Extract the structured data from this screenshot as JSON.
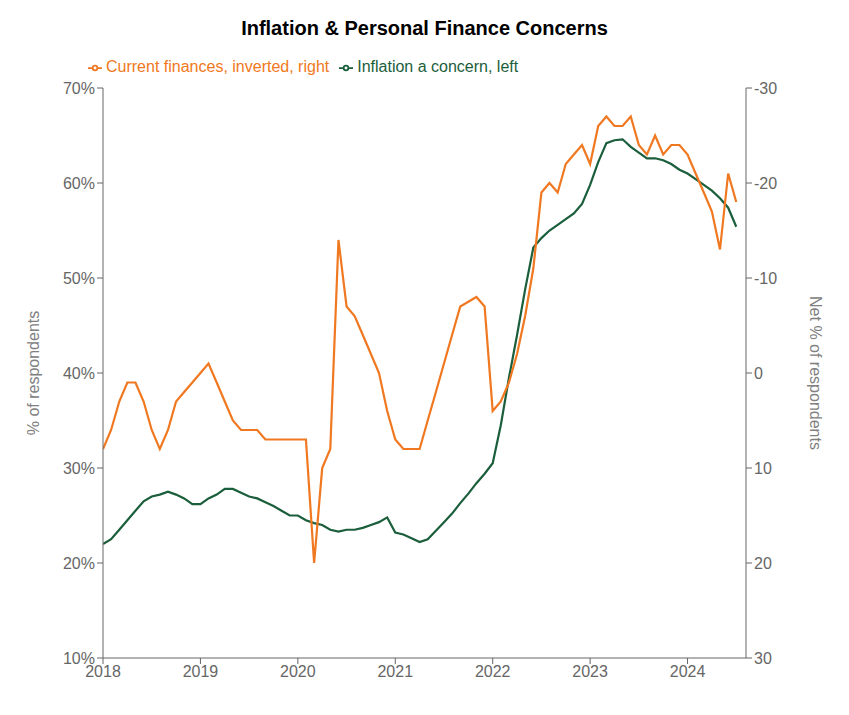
{
  "chart_data": {
    "type": "line",
    "title": "Inflation & Personal Finance Concerns",
    "y_label": "% of respondents",
    "y2_label": "Net % of respondents",
    "x": [
      2018.0,
      2018.083,
      2018.167,
      2018.25,
      2018.333,
      2018.417,
      2018.5,
      2018.583,
      2018.667,
      2018.75,
      2018.833,
      2018.917,
      2019.0,
      2019.083,
      2019.167,
      2019.25,
      2019.333,
      2019.417,
      2019.5,
      2019.583,
      2019.667,
      2019.75,
      2019.833,
      2019.917,
      2020.0,
      2020.083,
      2020.167,
      2020.25,
      2020.333,
      2020.417,
      2020.5,
      2020.583,
      2020.667,
      2020.75,
      2020.833,
      2020.917,
      2021.0,
      2021.083,
      2021.167,
      2021.25,
      2021.333,
      2021.417,
      2021.5,
      2021.583,
      2021.667,
      2021.75,
      2021.833,
      2021.917,
      2022.0,
      2022.083,
      2022.167,
      2022.25,
      2022.333,
      2022.417,
      2022.5,
      2022.583,
      2022.667,
      2022.75,
      2022.833,
      2022.917,
      2023.0,
      2023.083,
      2023.167,
      2023.25,
      2023.333,
      2023.417,
      2023.5,
      2023.583,
      2023.667,
      2023.75,
      2023.833,
      2023.917,
      2024.0,
      2024.083,
      2024.167,
      2024.25,
      2024.333,
      2024.417,
      2024.5
    ],
    "series": [
      {
        "name": "Inflation a concern, left",
        "color": "#1b5e3b",
        "axis": "y",
        "values": [
          0.22,
          0.225,
          0.235,
          0.245,
          0.255,
          0.265,
          0.27,
          0.272,
          0.275,
          0.272,
          0.268,
          0.262,
          0.262,
          0.268,
          0.272,
          0.278,
          0.278,
          0.274,
          0.27,
          0.268,
          0.264,
          0.26,
          0.255,
          0.25,
          0.25,
          0.245,
          0.242,
          0.24,
          0.235,
          0.233,
          0.235,
          0.235,
          0.237,
          0.24,
          0.243,
          0.248,
          0.232,
          0.23,
          0.226,
          0.222,
          0.225,
          0.234,
          0.243,
          0.252,
          0.263,
          0.273,
          0.284,
          0.294,
          0.305,
          0.345,
          0.395,
          0.44,
          0.488,
          0.532,
          0.542,
          0.55,
          0.556,
          0.562,
          0.568,
          0.578,
          0.598,
          0.622,
          0.642,
          0.645,
          0.646,
          0.638,
          0.632,
          0.626,
          0.626,
          0.624,
          0.62,
          0.614,
          0.61,
          0.604,
          0.598,
          0.592,
          0.584,
          0.574,
          0.554
        ]
      },
      {
        "name": "Current finances, inverted, right",
        "color": "#f07820",
        "axis": "y2",
        "values": [
          8,
          6,
          3,
          1,
          1,
          3,
          6,
          8,
          6,
          3,
          2,
          1,
          0,
          -1,
          1,
          3,
          5,
          6,
          6,
          6,
          7,
          7,
          7,
          7,
          7,
          7,
          20,
          10,
          8,
          -14,
          -7,
          -6,
          -4,
          -2,
          0,
          4,
          7,
          8,
          8,
          8,
          5,
          2,
          -1,
          -4,
          -7,
          -7.5,
          -8,
          -7,
          4,
          3,
          1,
          -2,
          -6,
          -11,
          -19,
          -20,
          -19,
          -22,
          -23,
          -24,
          -22,
          -26,
          -27,
          -26,
          -26,
          -27,
          -24,
          -23,
          -25,
          -23,
          -24,
          -24,
          -23,
          -21,
          -19,
          -17,
          -13,
          -21,
          -18
        ]
      }
    ],
    "xlim": [
      2018,
      2024.6
    ],
    "xticks": [
      2018,
      2019,
      2020,
      2021,
      2022,
      2023,
      2024
    ],
    "ylim": [
      0.1,
      0.7
    ],
    "yticks": [
      {
        "value": 0.1,
        "label": "10%"
      },
      {
        "value": 0.2,
        "label": "20%"
      },
      {
        "value": 0.3,
        "label": "30%"
      },
      {
        "value": 0.4,
        "label": "40%"
      },
      {
        "value": 0.5,
        "label": "50%"
      },
      {
        "value": 0.6,
        "label": "60%"
      },
      {
        "value": 0.7,
        "label": "70%"
      }
    ],
    "y2lim": [
      30,
      -30
    ],
    "y2ticks": [
      -30,
      -20,
      -10,
      0,
      10,
      20,
      30
    ],
    "grid": false,
    "legend": "upper left"
  }
}
